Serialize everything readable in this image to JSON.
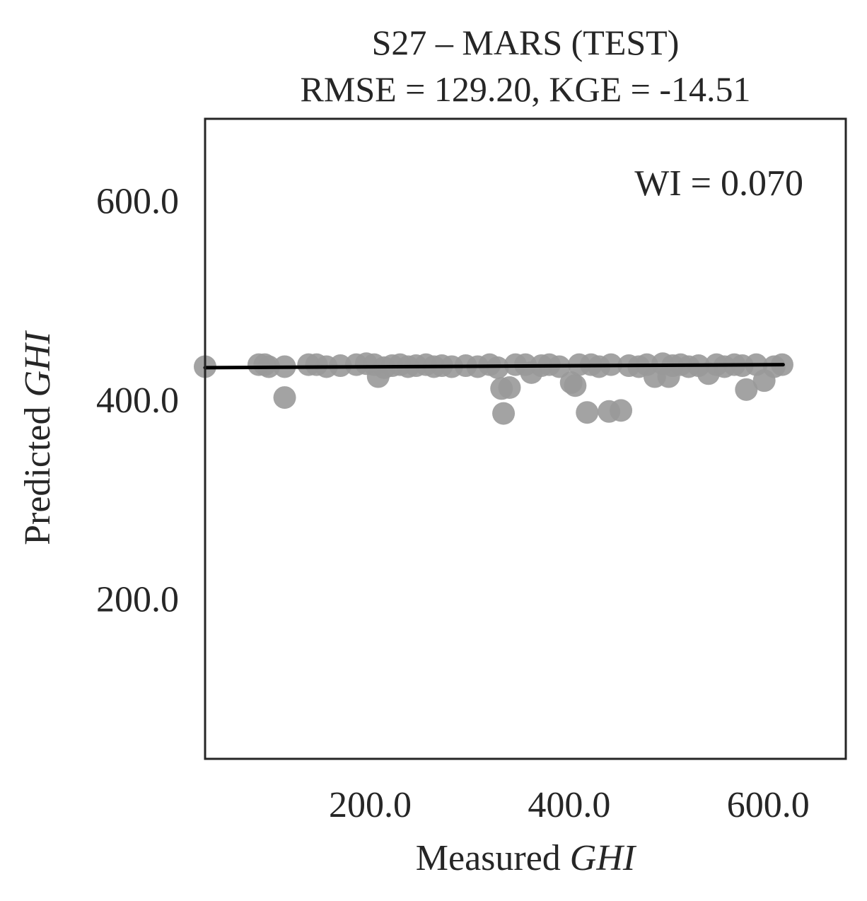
{
  "chart_data": {
    "type": "scatter",
    "title": "S27 – MARS (TEST)",
    "subtitle": "RMSE = 129.20, KGE = -14.51",
    "annotation": "WI = 0.070",
    "xlabel": {
      "prefix": "Measured ",
      "italic": "GHI"
    },
    "ylabel": {
      "prefix": "Predicted ",
      "italic": "GHI"
    },
    "xlim": [
      34,
      678
    ],
    "ylim": [
      40,
      683
    ],
    "xticks": [
      200,
      400,
      600
    ],
    "yticks": [
      200,
      400,
      600
    ],
    "xtick_labels": [
      "200.0",
      "400.0",
      "600.0"
    ],
    "ytick_labels": [
      "200.0",
      "400.0",
      "600.0"
    ],
    "grid": false,
    "point_color": "#999999",
    "line_color": "#000000",
    "regression_line": {
      "x": [
        34,
        615
      ],
      "y": [
        433,
        436
      ]
    },
    "points": [
      [
        34,
        434
      ],
      [
        88,
        436
      ],
      [
        94,
        436
      ],
      [
        98,
        434
      ],
      [
        114,
        434
      ],
      [
        114,
        403
      ],
      [
        138,
        436
      ],
      [
        146,
        436
      ],
      [
        156,
        434
      ],
      [
        170,
        435
      ],
      [
        186,
        436
      ],
      [
        196,
        437
      ],
      [
        204,
        436
      ],
      [
        208,
        424
      ],
      [
        214,
        433
      ],
      [
        222,
        435
      ],
      [
        230,
        436
      ],
      [
        238,
        434
      ],
      [
        246,
        435
      ],
      [
        256,
        436
      ],
      [
        264,
        434
      ],
      [
        272,
        435
      ],
      [
        282,
        434
      ],
      [
        296,
        435
      ],
      [
        308,
        434
      ],
      [
        320,
        436
      ],
      [
        328,
        433
      ],
      [
        332,
        412
      ],
      [
        334,
        387
      ],
      [
        340,
        413
      ],
      [
        346,
        436
      ],
      [
        356,
        436
      ],
      [
        362,
        428
      ],
      [
        372,
        435
      ],
      [
        380,
        436
      ],
      [
        390,
        434
      ],
      [
        402,
        418
      ],
      [
        406,
        415
      ],
      [
        410,
        436
      ],
      [
        418,
        388
      ],
      [
        422,
        436
      ],
      [
        430,
        434
      ],
      [
        440,
        389
      ],
      [
        442,
        436
      ],
      [
        452,
        390
      ],
      [
        460,
        435
      ],
      [
        470,
        434
      ],
      [
        478,
        436
      ],
      [
        486,
        424
      ],
      [
        494,
        437
      ],
      [
        500,
        424
      ],
      [
        504,
        435
      ],
      [
        512,
        436
      ],
      [
        520,
        434
      ],
      [
        530,
        435
      ],
      [
        540,
        427
      ],
      [
        548,
        436
      ],
      [
        556,
        434
      ],
      [
        566,
        436
      ],
      [
        574,
        435
      ],
      [
        578,
        411
      ],
      [
        588,
        436
      ],
      [
        596,
        420
      ],
      [
        606,
        434
      ],
      [
        614,
        436
      ]
    ]
  }
}
